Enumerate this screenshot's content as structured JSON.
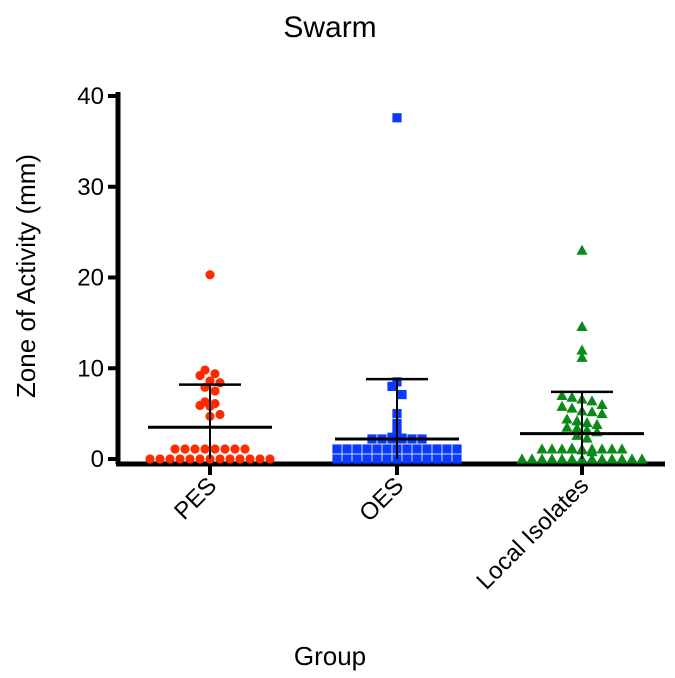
{
  "chart_data": {
    "type": "scatter",
    "title": "Swarm",
    "xlabel": "Group",
    "ylabel": "Zone of Activity (mm)",
    "ylim": [
      0,
      40
    ],
    "yticks": [
      "0",
      "10",
      "20",
      "30",
      "40"
    ],
    "grid": false,
    "categories": [
      "PES",
      "OES",
      "Local Isolates"
    ],
    "series": [
      {
        "category": "PES",
        "marker": "circle",
        "color": "#ff2a00",
        "mean": 3.5,
        "sd_upper": 8.2,
        "sd_lower": 0,
        "points": [
          20.3,
          9.8,
          9.4,
          9.2,
          8.6,
          8.4,
          7.9,
          7.5,
          6.3,
          6.1,
          5.9,
          5.8,
          4.9,
          4.7,
          0,
          0,
          0,
          0,
          0,
          0,
          0,
          0,
          0,
          0,
          0,
          0,
          0,
          0,
          0,
          0,
          0,
          0,
          0,
          0,
          0
        ]
      },
      {
        "category": "OES",
        "marker": "square",
        "color": "#0a3aff",
        "mean": 2.2,
        "sd_upper": 8.8,
        "sd_lower": 0,
        "points": [
          37.6,
          8.5,
          8.0,
          7.1,
          5.0,
          3.9,
          3.2,
          2.4,
          2.3,
          0,
          0,
          0,
          0,
          0,
          0,
          0,
          0,
          0,
          0,
          0,
          0,
          0,
          0,
          0,
          0,
          0,
          0,
          0,
          0,
          0,
          0,
          0,
          0,
          0,
          0,
          0,
          0,
          0,
          0,
          0,
          0
        ]
      },
      {
        "category": "Local Isolates",
        "marker": "triangle",
        "color": "#0a8a18",
        "mean": 2.8,
        "sd_upper": 7.4,
        "sd_lower": 0,
        "points": [
          23.0,
          14.6,
          12.0,
          11.2,
          7.0,
          6.8,
          6.6,
          6.4,
          6.0,
          5.8,
          5.6,
          5.3,
          5.2,
          5.0,
          4.4,
          4.2,
          4.0,
          3.8,
          3.5,
          3.4,
          3.2,
          3.0,
          2.6,
          2.3,
          1.2,
          1.0,
          0.8,
          0,
          0,
          0,
          0,
          0,
          0,
          0,
          0,
          0,
          0,
          0,
          0,
          0,
          0,
          0,
          0,
          0,
          0,
          0,
          0,
          0,
          0
        ]
      }
    ]
  }
}
